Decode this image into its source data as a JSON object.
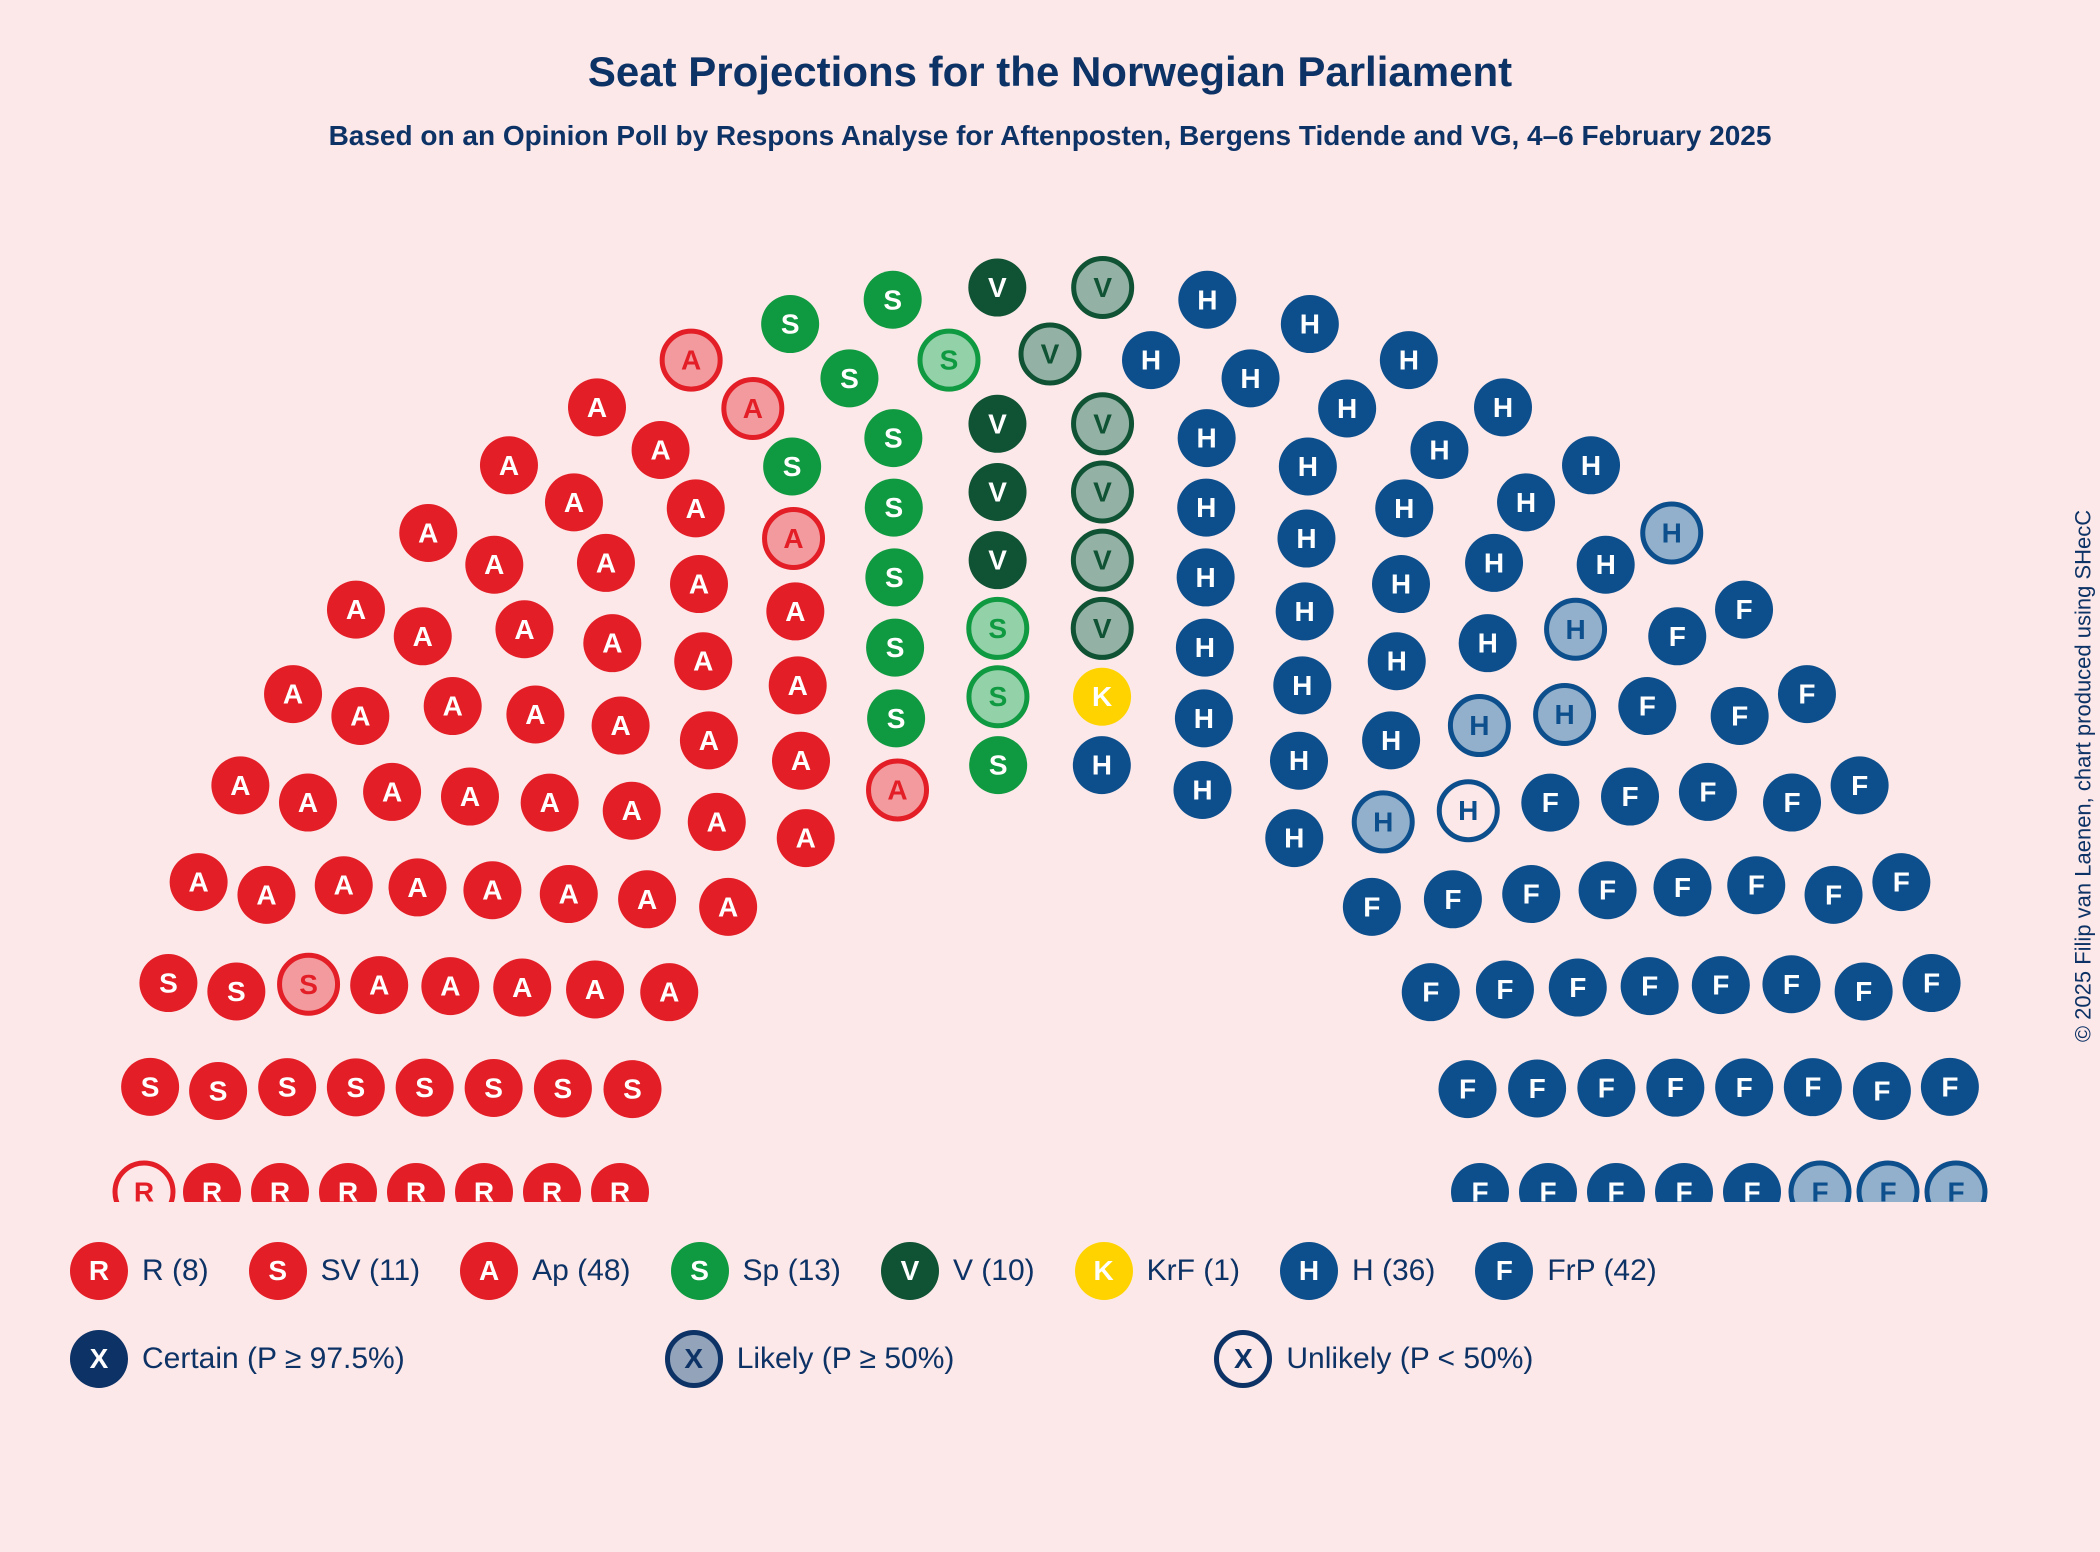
{
  "title": "Seat Projections for the Norwegian Parliament",
  "subtitle": "Based on an Opinion Poll by Respons Analyse for Aftenposten, Bergens Tidende and VG, 4–6 February 2025",
  "credit": "© 2025 Filip van Laenen, chart produced using SHecC",
  "background_color": "#fce8e8",
  "text_color": "#0d3266",
  "title_fontsize": 42,
  "subtitle_fontsize": 28,
  "chart": {
    "type": "parliament-hemicycle",
    "total_seats": 169,
    "seat_radius": 29,
    "seat_font_size": 28,
    "rows": 8,
    "legend_circle_radius": 29,
    "legend_font_size": 30
  },
  "parties": [
    {
      "code": "R",
      "letter": "R",
      "name": "R",
      "seats": 8,
      "color": "#e31e26",
      "likely": 0,
      "unlikely": 1
    },
    {
      "code": "SV",
      "letter": "S",
      "name": "SV",
      "seats": 11,
      "color": "#e31e26",
      "likely": 1,
      "unlikely": 0
    },
    {
      "code": "Ap",
      "letter": "A",
      "name": "Ap",
      "seats": 48,
      "color": "#e31e26",
      "likely": 4,
      "unlikely": 0
    },
    {
      "code": "Sp",
      "letter": "S",
      "name": "Sp",
      "seats": 13,
      "color": "#0f9940",
      "likely": 3,
      "unlikely": 0
    },
    {
      "code": "V",
      "letter": "V",
      "name": "V",
      "seats": 10,
      "color": "#0f5234",
      "likely": 6,
      "unlikely": 0
    },
    {
      "code": "KrF",
      "letter": "K",
      "name": "KrF",
      "seats": 1,
      "color": "#ffd300",
      "likely": 0,
      "unlikely": 0
    },
    {
      "code": "H",
      "letter": "H",
      "name": "H",
      "seats": 36,
      "color": "#0d4f8c",
      "likely": 5,
      "unlikely": 1
    },
    {
      "code": "FrP",
      "letter": "F",
      "name": "FrP",
      "seats": 42,
      "color": "#0d4f8c",
      "likely": 3,
      "unlikely": 0
    }
  ],
  "probability_legend": [
    {
      "key": "certain",
      "label": "Certain (P ≥ 97.5%)",
      "style": "solid",
      "color": "#0d3266"
    },
    {
      "key": "likely",
      "label": "Likely (P ≥ 50%)",
      "style": "faded",
      "color": "#0d3266"
    },
    {
      "key": "unlikely",
      "label": "Unlikely (P < 50%)",
      "style": "outline",
      "color": "#0d3266"
    }
  ],
  "faded_opacity": 0.45,
  "outline_stroke_width": 5
}
